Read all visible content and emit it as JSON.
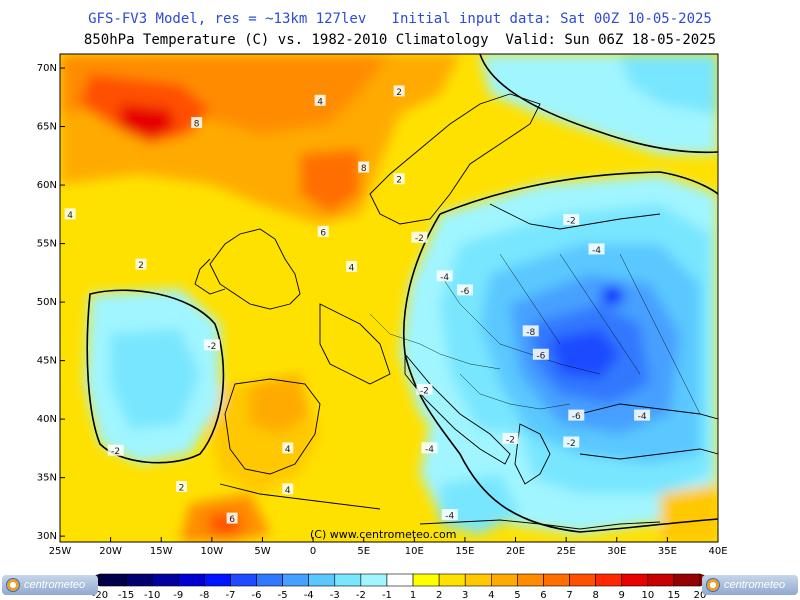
{
  "header": {
    "title_line1": "GFS-FV3 Model, res = ~13km 127lev   Initial input data: Sat 00Z 10-05-2025",
    "title_line2": "850hPa Temperature (C) vs. 1982-2010 Climatology  Valid: Sun 06Z 18-05-2025"
  },
  "map": {
    "lon_labels": [
      "25W",
      "20W",
      "15W",
      "10W",
      "5W",
      "0",
      "5E",
      "10E",
      "15E",
      "20E",
      "25E",
      "30E",
      "35E",
      "40E"
    ],
    "lat_labels": [
      "70N",
      "65N",
      "60N",
      "55N",
      "50N",
      "45N",
      "40N",
      "35N",
      "30N"
    ],
    "watermark": "(C) www.centrometeo.com",
    "contour_labels": [
      {
        "text": "8",
        "lon": -11.5,
        "lat": 65.3
      },
      {
        "text": "4",
        "lon": 0.7,
        "lat": 67.2
      },
      {
        "text": "2",
        "lon": 8.5,
        "lat": 68.0
      },
      {
        "text": "8",
        "lon": 5.0,
        "lat": 61.5
      },
      {
        "text": "2",
        "lon": 8.5,
        "lat": 60.5
      },
      {
        "text": "6",
        "lon": 1.0,
        "lat": 56.0
      },
      {
        "text": "4",
        "lon": -24.0,
        "lat": 57.5
      },
      {
        "text": "2",
        "lon": -17.0,
        "lat": 53.2
      },
      {
        "text": "4",
        "lon": 3.8,
        "lat": 53.0
      },
      {
        "text": "-2",
        "lon": -10.0,
        "lat": 46.3
      },
      {
        "text": "-2",
        "lon": -19.5,
        "lat": 37.3
      },
      {
        "text": "2",
        "lon": -13.0,
        "lat": 34.2
      },
      {
        "text": "4",
        "lon": -2.5,
        "lat": 37.5
      },
      {
        "text": "4",
        "lon": -2.5,
        "lat": 34.0
      },
      {
        "text": "6",
        "lon": -8.0,
        "lat": 31.5
      },
      {
        "text": "-2",
        "lon": 10.5,
        "lat": 55.5
      },
      {
        "text": "-4",
        "lon": 13.0,
        "lat": 52.2
      },
      {
        "text": "-6",
        "lon": 15.0,
        "lat": 51.0
      },
      {
        "text": "-2",
        "lon": 11.0,
        "lat": 42.5
      },
      {
        "text": "-8",
        "lon": 21.5,
        "lat": 47.5
      },
      {
        "text": "-6",
        "lon": 22.5,
        "lat": 45.5
      },
      {
        "text": "-2",
        "lon": 25.5,
        "lat": 57.0
      },
      {
        "text": "-4",
        "lon": 28.0,
        "lat": 54.5
      },
      {
        "text": "-2",
        "lon": 19.5,
        "lat": 38.3
      },
      {
        "text": "-4",
        "lon": 11.5,
        "lat": 37.5
      },
      {
        "text": "-6",
        "lon": 26.0,
        "lat": 40.3
      },
      {
        "text": "-4",
        "lon": 32.5,
        "lat": 40.3
      },
      {
        "text": "-2",
        "lon": 25.5,
        "lat": 38.0
      },
      {
        "text": "-4",
        "lon": 13.5,
        "lat": 31.8
      }
    ]
  },
  "legend": {
    "labels": [
      "-20",
      "-15",
      "-10",
      "-9",
      "-8",
      "-7",
      "-6",
      "-5",
      "-4",
      "-3",
      "-2",
      "-1",
      "1",
      "2",
      "3",
      "4",
      "5",
      "6",
      "7",
      "8",
      "9",
      "10",
      "15",
      "20"
    ],
    "colors": [
      "#000048",
      "#00006e",
      "#0000a0",
      "#0000d2",
      "#0014ff",
      "#1e4bff",
      "#3278ff",
      "#46a0ff",
      "#5ac8ff",
      "#78e6ff",
      "#a0f5ff",
      "#ffffff",
      "#ffff00",
      "#ffe100",
      "#ffc800",
      "#ffaa00",
      "#ff8c00",
      "#ff6e00",
      "#ff5000",
      "#ff2800",
      "#e60000",
      "#c80000",
      "#960000"
    ],
    "logo_text": "centrometeo"
  }
}
